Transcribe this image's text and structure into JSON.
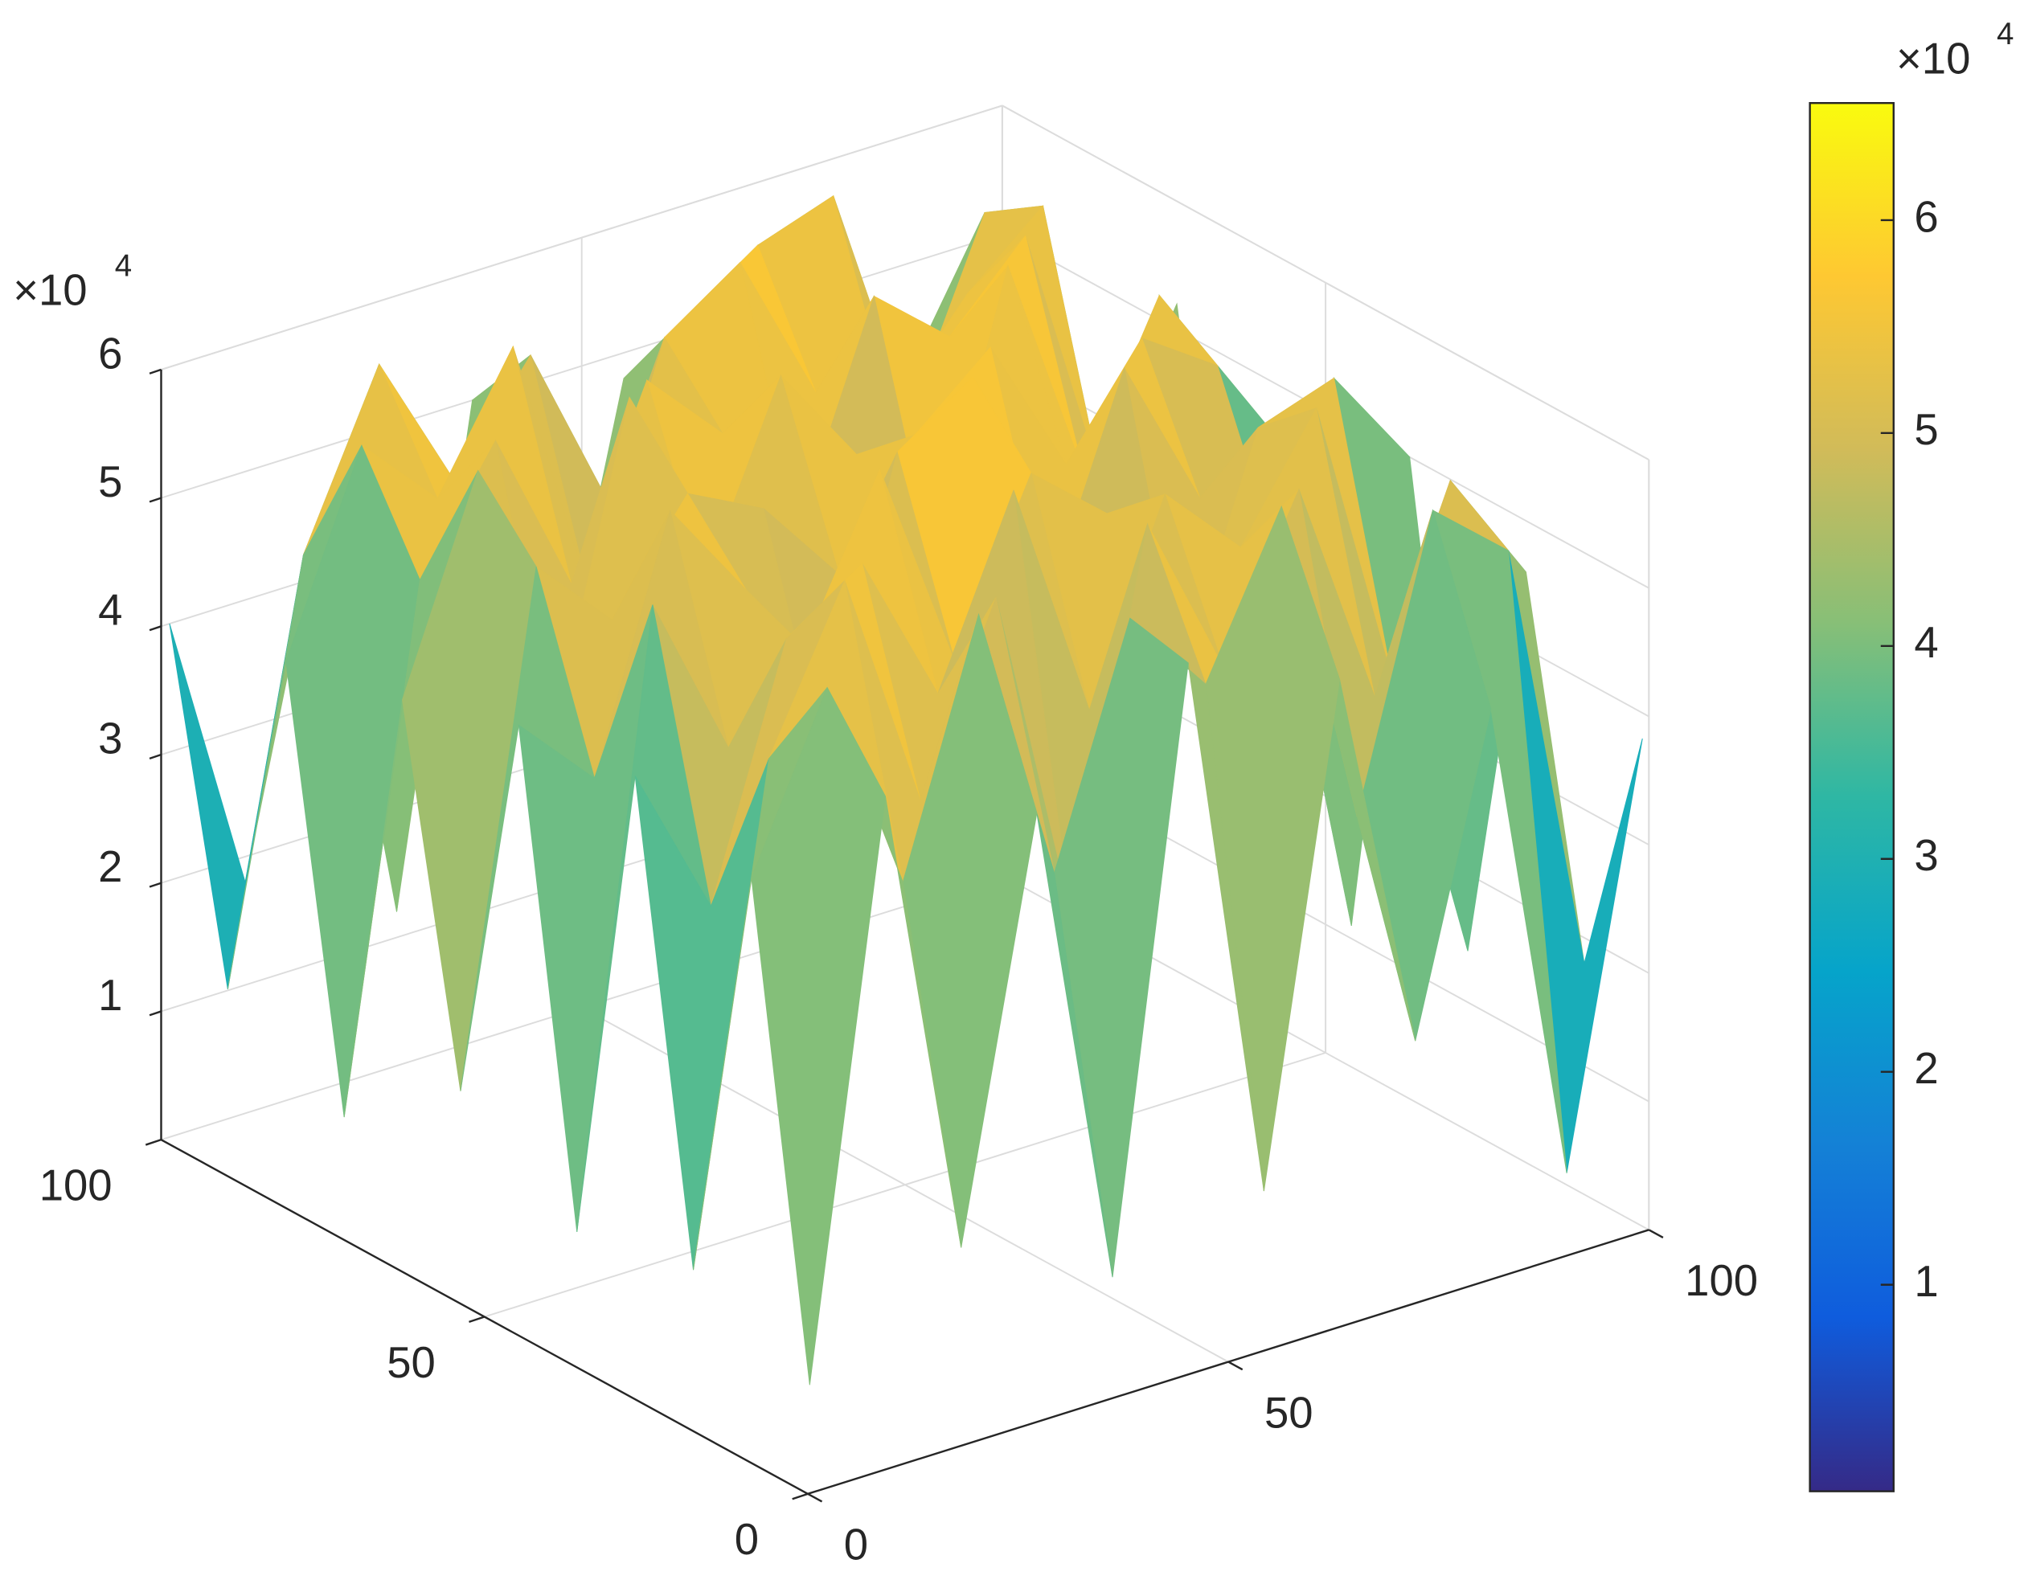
{
  "chart_data": {
    "type": "surface",
    "colormap": "parula",
    "x": [
      1,
      10,
      19,
      28,
      37,
      46,
      55,
      64,
      73,
      82,
      91,
      100
    ],
    "y": [
      1,
      10,
      19,
      28,
      37,
      46,
      55,
      64,
      73,
      82,
      91,
      100
    ],
    "z": [
      [
        8000,
        52000,
        15000,
        47000,
        9000,
        55000,
        12000,
        50000,
        20000,
        44000,
        6000,
        38000
      ],
      [
        45000,
        58000,
        41000,
        60000,
        38000,
        56000,
        49000,
        61000,
        35000,
        57000,
        52000,
        18000
      ],
      [
        12000,
        50000,
        62000,
        43000,
        57000,
        30000,
        59000,
        46000,
        58000,
        40000,
        55000,
        46000
      ],
      [
        48000,
        36000,
        55000,
        59000,
        47000,
        61000,
        42000,
        57000,
        51000,
        60000,
        37000,
        14000
      ],
      [
        10000,
        57000,
        44000,
        50000,
        62000,
        45000,
        58000,
        53000,
        39000,
        56000,
        58000,
        50000
      ],
      [
        47000,
        41000,
        60000,
        52000,
        38000,
        59000,
        63000,
        44000,
        60000,
        48000,
        42000,
        11000
      ],
      [
        16000,
        55000,
        49000,
        57000,
        54000,
        47000,
        56000,
        61000,
        50000,
        58000,
        54000,
        45000
      ],
      [
        44000,
        60000,
        38000,
        62000,
        46000,
        60000,
        52000,
        42000,
        63000,
        45000,
        57000,
        20000
      ],
      [
        9000,
        49000,
        58000,
        45000,
        59000,
        53000,
        44000,
        60000,
        55000,
        61000,
        40000,
        52000
      ],
      [
        42000,
        57000,
        51000,
        61000,
        40000,
        58000,
        62000,
        50000,
        47000,
        54000,
        59000,
        13000
      ],
      [
        14000,
        46000,
        59000,
        48000,
        56000,
        43000,
        55000,
        59000,
        61000,
        42000,
        56000,
        48000
      ],
      [
        40000,
        18000,
        45000,
        12000,
        50000,
        22000,
        48000,
        10000,
        52000,
        25000,
        44000,
        30000
      ]
    ],
    "xlim": [
      0,
      100
    ],
    "ylim": [
      0,
      100
    ],
    "zlim": [
      0,
      60000
    ],
    "xticks": [
      0,
      50,
      100
    ],
    "yticks": [
      0,
      50,
      100
    ],
    "zticks": [
      {
        "value": 10000,
        "label": "1"
      },
      {
        "value": 20000,
        "label": "2"
      },
      {
        "value": 30000,
        "label": "3"
      },
      {
        "value": 40000,
        "label": "4"
      },
      {
        "value": 50000,
        "label": "5"
      },
      {
        "value": 60000,
        "label": "6"
      }
    ],
    "z_exponent_base": "×10",
    "z_exponent": "4",
    "grid": true,
    "clim": [
      300,
      65500
    ],
    "colorbar_ticks": [
      {
        "value": 10000,
        "label": "1"
      },
      {
        "value": 20000,
        "label": "2"
      },
      {
        "value": 30000,
        "label": "3"
      },
      {
        "value": 40000,
        "label": "4"
      },
      {
        "value": 50000,
        "label": "5"
      },
      {
        "value": 60000,
        "label": "6"
      }
    ],
    "colorbar_exponent_base": "×10",
    "colorbar_exponent": "4"
  }
}
